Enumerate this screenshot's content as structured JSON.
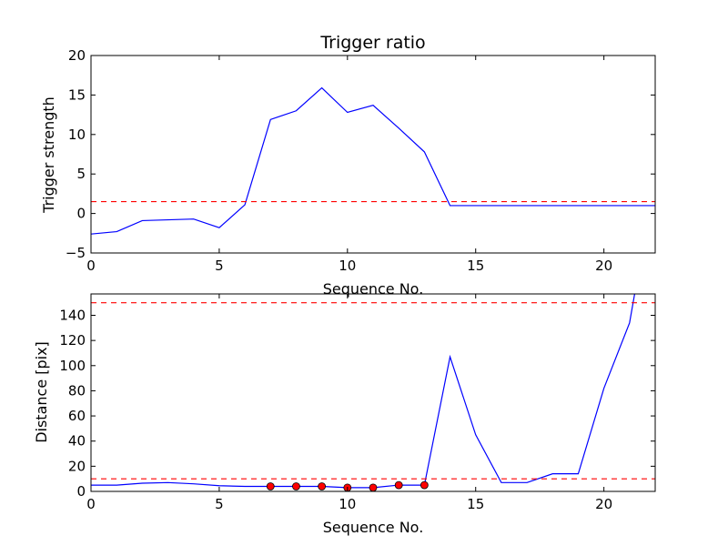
{
  "chart_data": [
    {
      "type": "line",
      "title": "Trigger ratio",
      "xlabel": "Sequence No.",
      "ylabel": "Trigger strength",
      "xlim": [
        0,
        22
      ],
      "ylim": [
        -5,
        20
      ],
      "xticks": [
        0,
        5,
        10,
        15,
        20
      ],
      "yticks": [
        -5,
        0,
        5,
        10,
        15,
        20
      ],
      "series": [
        {
          "color": "#0000ff",
          "x": [
            0,
            1,
            2,
            3,
            4,
            5,
            6,
            7,
            8,
            9,
            10,
            11,
            12,
            13,
            14,
            15,
            16,
            17,
            18,
            19,
            20,
            21,
            22
          ],
          "y": [
            -2.6,
            -2.3,
            -0.9,
            -0.8,
            -0.7,
            -1.8,
            1.1,
            11.9,
            13.0,
            15.9,
            12.8,
            13.7,
            10.8,
            7.8,
            1.0,
            1.0,
            1.0,
            1.0,
            1.0,
            1.0,
            1.0,
            1.0,
            1.0
          ]
        }
      ],
      "hlines": [
        {
          "y": 1.5,
          "color": "#ff0000",
          "style": "dashed"
        }
      ],
      "grid": false
    },
    {
      "type": "line",
      "title": "",
      "xlabel": "Sequence No.",
      "ylabel": "Distance [pix]",
      "xlim": [
        0,
        22
      ],
      "ylim": [
        0,
        157
      ],
      "xticks": [
        0,
        5,
        10,
        15,
        20
      ],
      "yticks": [
        0,
        20,
        40,
        60,
        80,
        100,
        120,
        140
      ],
      "series": [
        {
          "color": "#0000ff",
          "x": [
            0,
            1,
            2,
            3,
            4,
            5,
            6,
            7,
            8,
            9,
            10,
            11,
            12,
            13,
            14,
            15,
            16,
            17,
            18,
            19,
            20,
            21,
            22
          ],
          "y": [
            5,
            5,
            6.5,
            7,
            6,
            4.5,
            4,
            4,
            4,
            4,
            3,
            3,
            5,
            5,
            107,
            45,
            7,
            7,
            14,
            14,
            82,
            134,
            250
          ]
        }
      ],
      "markers": {
        "color": "#ff0000",
        "x": [
          7,
          8,
          9,
          10,
          11,
          12,
          13
        ],
        "y": [
          4,
          4,
          4,
          3,
          3,
          5,
          5
        ]
      },
      "hlines": [
        {
          "y": 150,
          "color": "#ff0000",
          "style": "dashed"
        },
        {
          "y": 10,
          "color": "#ff0000",
          "style": "dashed"
        }
      ],
      "grid": false
    }
  ]
}
